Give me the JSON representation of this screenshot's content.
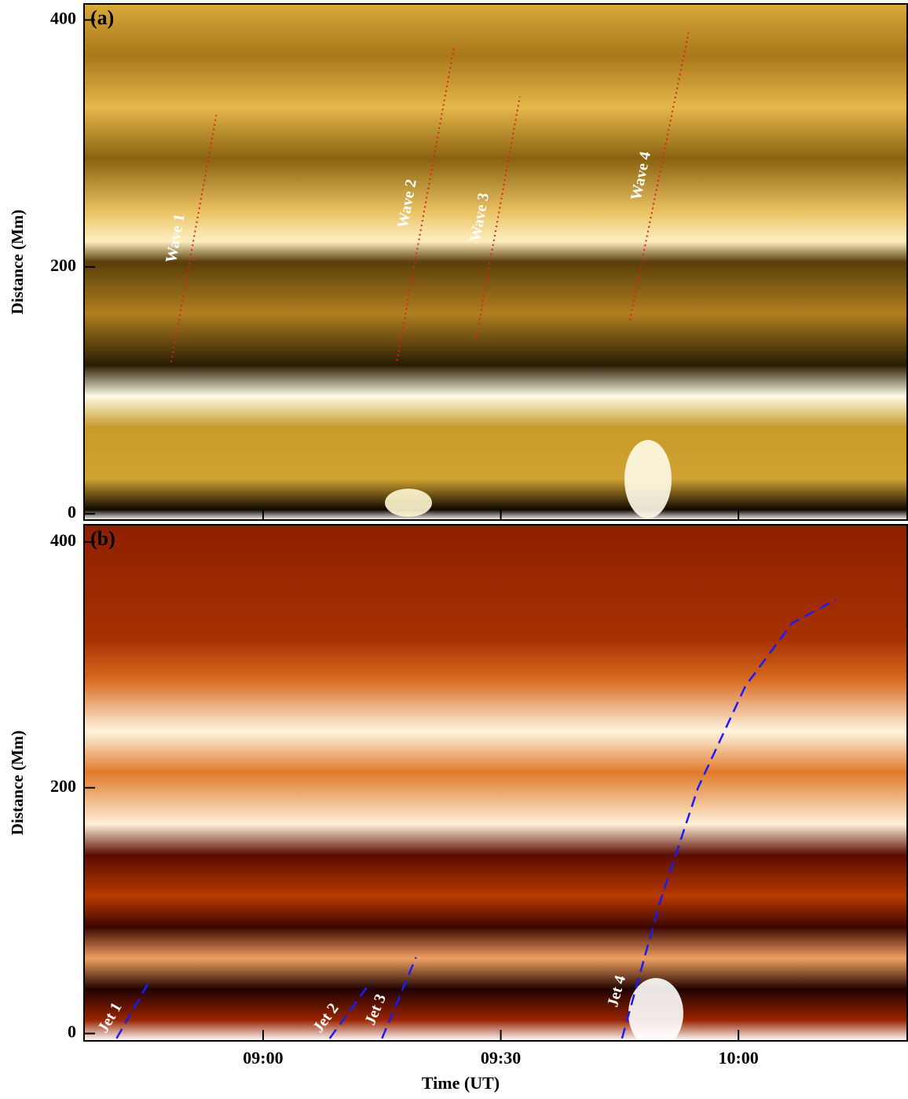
{
  "chart_data": [
    {
      "type": "line",
      "title": "(a)",
      "ylabel": "Distance (Mm)",
      "xlim": [
        517.4,
        621.4
      ],
      "ylim": [
        -5,
        413
      ],
      "yticks": [
        0,
        200,
        400
      ],
      "linestyle": "dotted",
      "series": [
        {
          "name": "Wave 1",
          "color": "#e02020",
          "x": [
            528.4,
            534.1
          ],
          "values": [
            123,
            323
          ]
        },
        {
          "name": "Wave 2",
          "color": "#e02020",
          "x": [
            556.9,
            564.1
          ],
          "values": [
            124,
            378
          ]
        },
        {
          "name": "Wave 3",
          "color": "#e02020",
          "x": [
            566.9,
            572.4
          ],
          "values": [
            142,
            338
          ]
        },
        {
          "name": "Wave 4",
          "color": "#e02020",
          "x": [
            586.3,
            593.7
          ],
          "values": [
            157,
            390
          ]
        }
      ]
    },
    {
      "type": "line",
      "title": "(b)",
      "ylabel": "Distance (Mm)",
      "xlabel": "Time (UT)",
      "xlim": [
        517.4,
        621.4
      ],
      "ylim": [
        -6,
        414
      ],
      "yticks": [
        0,
        200,
        400
      ],
      "xticks": [
        {
          "value": 540,
          "label": "09:00"
        },
        {
          "value": 570,
          "label": "09:30"
        },
        {
          "value": 600,
          "label": "10:00"
        }
      ],
      "linestyle": "dashed",
      "series": [
        {
          "name": "Jet 1",
          "color": "#1a1aff",
          "x": [
            521.5,
            525.7
          ],
          "values": [
            -4,
            43
          ]
        },
        {
          "name": "Jet 2",
          "color": "#1a1aff",
          "x": [
            548.4,
            553.6
          ],
          "values": [
            -4,
            42
          ]
        },
        {
          "name": "Jet 3",
          "color": "#1a1aff",
          "x": [
            555.0,
            559.3
          ],
          "values": [
            -4,
            62
          ]
        },
        {
          "name": "Jet 4",
          "color": "#1a1aff",
          "x": [
            585.3,
            590.0,
            594.9,
            600.9,
            606.8,
            612.3
          ],
          "values": [
            -4,
            105,
            200,
            283,
            334,
            353
          ]
        }
      ]
    }
  ]
}
